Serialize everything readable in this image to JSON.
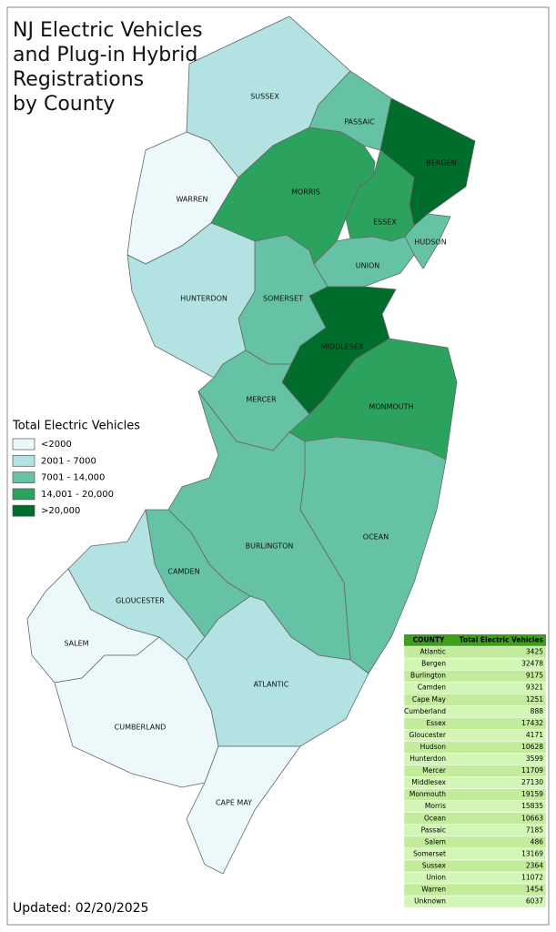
{
  "title": [
    "NJ Electric Vehicles",
    "and Plug-in Hybrid",
    "Registrations",
    "by County"
  ],
  "legend": {
    "title": "Total Electric Vehicles",
    "items": [
      {
        "label": "<2000",
        "color": "#edf8fb"
      },
      {
        "label": "2001 - 7000",
        "color": "#b2e2e2"
      },
      {
        "label": "7001 - 14,000",
        "color": "#66c2a4"
      },
      {
        "label": "14,001 - 20,000",
        "color": "#2ca25f"
      },
      {
        "label": ">20,000",
        "color": "#006d2c"
      }
    ]
  },
  "counties": [
    {
      "label": "SUSSEX",
      "color": "#b2e2e2"
    },
    {
      "label": "WARREN",
      "color": "#edf8fb"
    },
    {
      "label": "PASSAIC",
      "color": "#66c2a4"
    },
    {
      "label": "BERGEN",
      "color": "#006d2c"
    },
    {
      "label": "MORRIS",
      "color": "#2ca25f"
    },
    {
      "label": "ESSEX",
      "color": "#2ca25f"
    },
    {
      "label": "HUDSON",
      "color": "#66c2a4"
    },
    {
      "label": "UNION",
      "color": "#66c2a4"
    },
    {
      "label": "SOMERSET",
      "color": "#66c2a4"
    },
    {
      "label": "HUNTERDON",
      "color": "#b2e2e2"
    },
    {
      "label": "MIDDLESEX",
      "color": "#006d2c"
    },
    {
      "label": "MONMOUTH",
      "color": "#2ca25f"
    },
    {
      "label": "MERCER",
      "color": "#66c2a4"
    },
    {
      "label": "OCEAN",
      "color": "#66c2a4"
    },
    {
      "label": "BURLINGTON",
      "color": "#66c2a4"
    },
    {
      "label": "CAMDEN",
      "color": "#66c2a4"
    },
    {
      "label": "GLOUCESTER",
      "color": "#b2e2e2"
    },
    {
      "label": "SALEM",
      "color": "#edf8fb"
    },
    {
      "label": "ATLANTIC",
      "color": "#b2e2e2"
    },
    {
      "label": "CUMBERLAND",
      "color": "#edf8fb"
    },
    {
      "label": "CAPE MAY",
      "color": "#edf8fb"
    }
  ],
  "table": {
    "header": [
      "COUNTY",
      "Total Electric Vehicles"
    ],
    "rows": [
      [
        "Atlantic",
        3425
      ],
      [
        "Bergen",
        32478
      ],
      [
        "Burlington",
        9175
      ],
      [
        "Camden",
        9321
      ],
      [
        "Cape May",
        1251
      ],
      [
        "Cumberland",
        888
      ],
      [
        "Essex",
        17432
      ],
      [
        "Gloucester",
        4171
      ],
      [
        "Hudson",
        10628
      ],
      [
        "Hunterdon",
        3599
      ],
      [
        "Mercer",
        11709
      ],
      [
        "Middlesex",
        27130
      ],
      [
        "Monmouth",
        19159
      ],
      [
        "Morris",
        15835
      ],
      [
        "Ocean",
        10663
      ],
      [
        "Passaic",
        7185
      ],
      [
        "Salem",
        486
      ],
      [
        "Somerset",
        13169
      ],
      [
        "Sussex",
        2364
      ],
      [
        "Union",
        11072
      ],
      [
        "Warren",
        1454
      ],
      [
        "Unknown",
        6037
      ]
    ]
  },
  "footer": "Updated: 02/20/2025"
}
